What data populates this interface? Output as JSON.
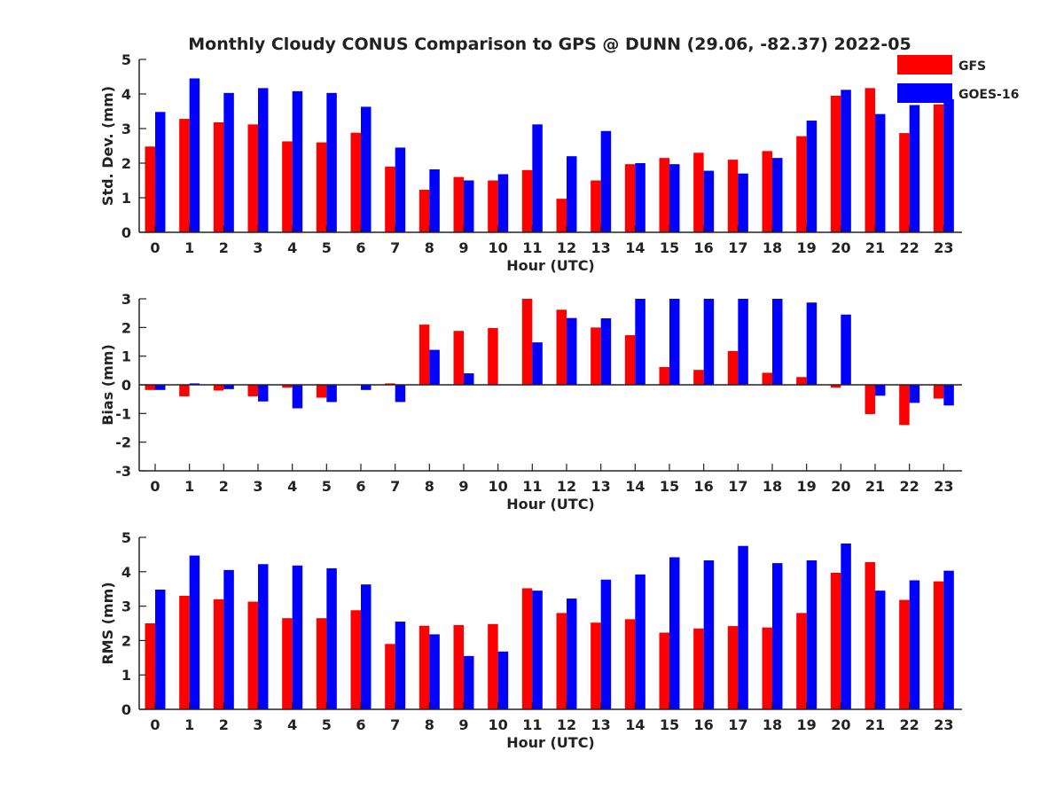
{
  "title": "Monthly Cloudy CONUS Comparison to GPS @ DUNN (29.06, -82.37) 2022-05",
  "legend": {
    "placement": "top-right",
    "items": [
      {
        "label": "GFS",
        "color": "#ff0000"
      },
      {
        "label": "GOES-16",
        "color": "#0000ff"
      }
    ]
  },
  "chart_data": [
    {
      "type": "bar",
      "xlabel": "Hour (UTC)",
      "ylabel": "Std. Dev. (mm)",
      "ylim": [
        0,
        5
      ],
      "yticks": [
        "0",
        "1",
        "2",
        "3",
        "4",
        "5"
      ],
      "categories": [
        "0",
        "1",
        "2",
        "3",
        "4",
        "5",
        "6",
        "7",
        "8",
        "9",
        "10",
        "11",
        "12",
        "13",
        "14",
        "15",
        "16",
        "17",
        "18",
        "19",
        "20",
        "21",
        "22",
        "23"
      ],
      "series": [
        {
          "name": "GFS",
          "color": "#ff0000",
          "values": [
            2.48,
            3.28,
            3.18,
            3.12,
            2.63,
            2.6,
            2.88,
            1.9,
            1.23,
            1.6,
            1.5,
            1.8,
            0.97,
            1.5,
            1.97,
            2.15,
            2.3,
            2.1,
            2.35,
            2.78,
            3.95,
            4.17,
            2.87,
            3.7
          ]
        },
        {
          "name": "GOES-16",
          "color": "#0000ff",
          "values": [
            3.48,
            4.45,
            4.03,
            4.17,
            4.08,
            4.03,
            3.63,
            2.45,
            1.82,
            1.5,
            1.68,
            3.12,
            2.2,
            2.93,
            2.0,
            1.97,
            1.78,
            1.7,
            2.15,
            3.23,
            4.12,
            3.42,
            3.68,
            3.85
          ]
        }
      ]
    },
    {
      "type": "bar",
      "xlabel": "Hour (UTC)",
      "ylabel": "Bias (mm)",
      "ylim": [
        -3,
        3
      ],
      "yticks": [
        "-3",
        "-2",
        "-1",
        "0",
        "1",
        "2",
        "3"
      ],
      "categories": [
        "0",
        "1",
        "2",
        "3",
        "4",
        "5",
        "6",
        "7",
        "8",
        "9",
        "10",
        "11",
        "12",
        "13",
        "14",
        "15",
        "16",
        "17",
        "18",
        "19",
        "20",
        "21",
        "22",
        "23"
      ],
      "series": [
        {
          "name": "GFS",
          "color": "#ff0000",
          "values": [
            -0.18,
            -0.4,
            -0.2,
            -0.4,
            -0.1,
            -0.45,
            0.0,
            0.05,
            2.1,
            1.88,
            1.98,
            3.0,
            2.62,
            2.0,
            1.73,
            0.62,
            0.52,
            1.18,
            0.42,
            0.27,
            -0.1,
            -1.02,
            -1.4,
            -0.48
          ]
        },
        {
          "name": "GOES-16",
          "color": "#0000ff",
          "values": [
            -0.18,
            0.05,
            -0.15,
            -0.58,
            -0.82,
            -0.6,
            -0.18,
            -0.6,
            1.22,
            0.4,
            0.0,
            1.48,
            2.33,
            2.32,
            3.0,
            3.0,
            3.0,
            3.0,
            3.0,
            2.87,
            2.45,
            -0.38,
            -0.63,
            -0.72
          ]
        }
      ]
    },
    {
      "type": "bar",
      "xlabel": "Hour (UTC)",
      "ylabel": "RMS (mm)",
      "ylim": [
        0,
        5
      ],
      "yticks": [
        "0",
        "1",
        "2",
        "3",
        "4",
        "5"
      ],
      "categories": [
        "0",
        "1",
        "2",
        "3",
        "4",
        "5",
        "6",
        "7",
        "8",
        "9",
        "10",
        "11",
        "12",
        "13",
        "14",
        "15",
        "16",
        "17",
        "18",
        "19",
        "20",
        "21",
        "22",
        "23"
      ],
      "series": [
        {
          "name": "GFS",
          "color": "#ff0000",
          "values": [
            2.5,
            3.3,
            3.2,
            3.13,
            2.65,
            2.65,
            2.88,
            1.9,
            2.43,
            2.45,
            2.48,
            3.52,
            2.8,
            2.52,
            2.62,
            2.23,
            2.35,
            2.42,
            2.38,
            2.8,
            3.97,
            4.28,
            3.18,
            3.72
          ]
        },
        {
          "name": "GOES-16",
          "color": "#0000ff",
          "values": [
            3.48,
            4.47,
            4.05,
            4.22,
            4.18,
            4.1,
            3.63,
            2.55,
            2.18,
            1.55,
            1.68,
            3.45,
            3.22,
            3.77,
            3.92,
            4.42,
            4.33,
            4.75,
            4.25,
            4.33,
            4.82,
            3.45,
            3.75,
            4.03
          ]
        }
      ]
    }
  ]
}
